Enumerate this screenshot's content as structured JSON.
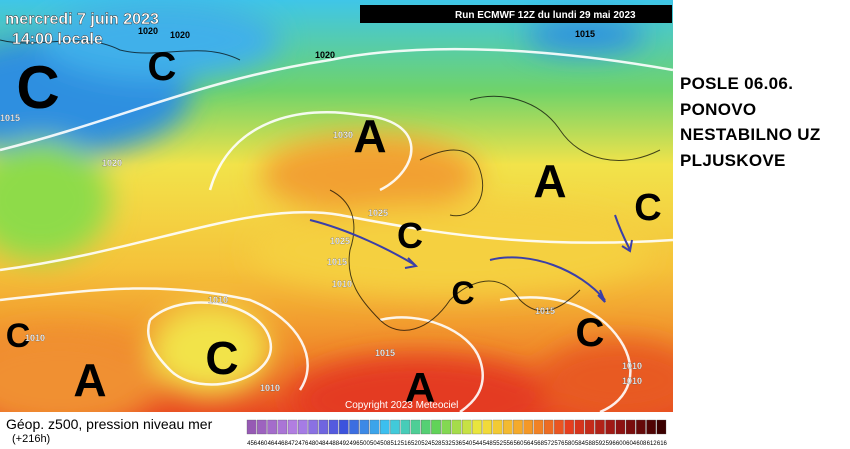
{
  "header": {
    "date": "mercredi 7 juin 2023",
    "time": "14:00 locale",
    "run": "Run ECMWF 12Z du lundi 29 mai 2023"
  },
  "annotation": [
    "POSLE 06.06.",
    "PONOVO",
    "NESTABILNO UZ",
    "PLJUSKOVE"
  ],
  "map": {
    "centers": [
      "C",
      "C",
      "A",
      "A",
      "C",
      "C",
      "C",
      "C",
      "A",
      "C",
      "A",
      "C"
    ],
    "isobars": [
      "1020",
      "1020",
      "1015",
      "1020",
      "1015",
      "1020",
      "1030",
      "1025",
      "1025",
      "1015",
      "1010",
      "1010",
      "1010",
      "1015",
      "1015",
      "1010",
      "1010",
      "1010"
    ],
    "copyright": "Copyright 2023 Meteociel"
  },
  "legend": {
    "title": "Géop. z500, pression niveau mer",
    "lead": "(+216h)",
    "scale": [
      "456",
      "460",
      "464",
      "468",
      "472",
      "476",
      "480",
      "484",
      "488",
      "492",
      "496",
      "500",
      "504",
      "508",
      "512",
      "516",
      "520",
      "524",
      "528",
      "532",
      "536",
      "540",
      "544",
      "548",
      "552",
      "556",
      "560",
      "564",
      "568",
      "572",
      "576",
      "580",
      "584",
      "588",
      "592",
      "596",
      "600",
      "604",
      "608",
      "612",
      "616"
    ]
  }
}
